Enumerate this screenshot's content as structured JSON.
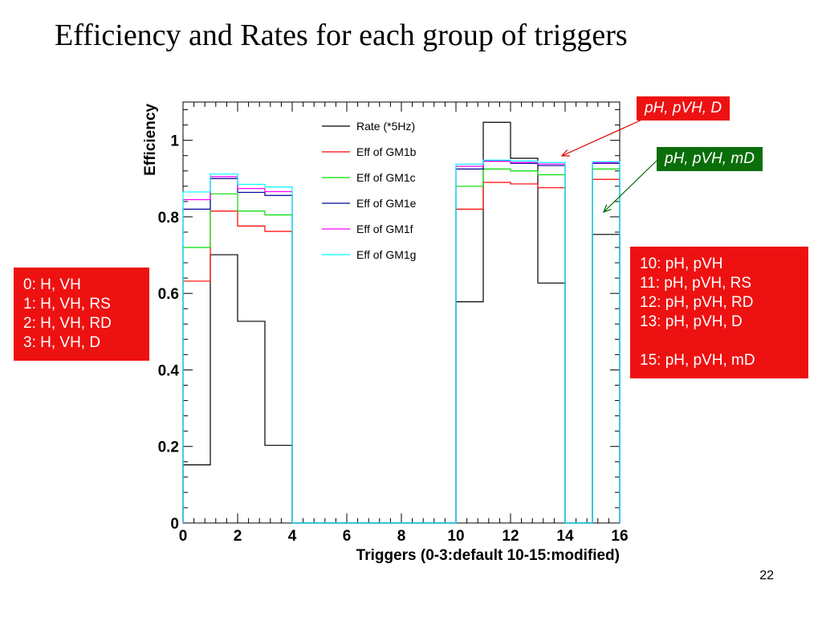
{
  "slide": {
    "title": "Efficiency and Rates for each group of triggers",
    "page_number": "22"
  },
  "chart_data": {
    "type": "line",
    "step": true,
    "xlabel": "Triggers (0-3:default 10-15:modified)",
    "ylabel": "Efficiency",
    "xlim": [
      0,
      16
    ],
    "ylim": [
      0,
      1.1
    ],
    "xticks": [
      0,
      2,
      4,
      6,
      8,
      10,
      12,
      14,
      16
    ],
    "yticks": [
      0,
      0.2,
      0.4,
      0.6,
      0.8,
      1
    ],
    "bin_edges": [
      0,
      1,
      2,
      3,
      4,
      5,
      6,
      7,
      8,
      9,
      10,
      11,
      12,
      13,
      14,
      15,
      16
    ],
    "legend_position": "top-center",
    "series": [
      {
        "name": "Rate (*5Hz)",
        "color": "#000000",
        "values": [
          0.152,
          0.701,
          0.527,
          0.203,
          0,
          0,
          0,
          0,
          0,
          0,
          0.578,
          1.047,
          0.953,
          0.627,
          0,
          0.754
        ]
      },
      {
        "name": "Eff of GM1b",
        "color": "#ff0000",
        "values": [
          0.632,
          0.815,
          0.776,
          0.762,
          0,
          0,
          0,
          0,
          0,
          0,
          0.82,
          0.89,
          0.886,
          0.876,
          0,
          0.898
        ]
      },
      {
        "name": "Eff of GM1c",
        "color": "#00dd00",
        "values": [
          0.72,
          0.86,
          0.815,
          0.805,
          0,
          0,
          0,
          0,
          0,
          0,
          0.88,
          0.925,
          0.92,
          0.91,
          0,
          0.925
        ]
      },
      {
        "name": "Eff of GM1e",
        "color": "#000099",
        "values": [
          0.82,
          0.9,
          0.864,
          0.856,
          0,
          0,
          0,
          0,
          0,
          0,
          0.925,
          0.946,
          0.94,
          0.934,
          0,
          0.94
        ]
      },
      {
        "name": "Eff of GM1f",
        "color": "#ff00ff",
        "values": [
          0.845,
          0.905,
          0.874,
          0.866,
          0,
          0,
          0,
          0,
          0,
          0,
          0.932,
          0.945,
          0.942,
          0.938,
          0,
          0.942
        ]
      },
      {
        "name": "Eff of GM1g",
        "color": "#00ffff",
        "values": [
          0.865,
          0.912,
          0.885,
          0.878,
          0,
          0,
          0,
          0,
          0,
          0,
          0.938,
          0.948,
          0.946,
          0.942,
          0,
          0.944
        ]
      }
    ]
  },
  "annotations": {
    "tag_d": "pH, pVH, D",
    "tag_md": "pH, pVH, mD",
    "left_box": [
      "0: H, VH",
      "1: H, VH, RS",
      "2: H, VH, RD",
      "3: H, VH, D"
    ],
    "right_box": [
      "10: pH, pVH",
      "11: pH, pVH, RS",
      "12: pH, pVH, RD",
      "13: pH, pVH, D",
      "",
      "15: pH, pVH, mD"
    ]
  },
  "colors": {
    "annotation_red": "#ee1111",
    "annotation_green": "#0a6e0a",
    "arrow_red": "#dd0000",
    "arrow_green": "#006600"
  }
}
